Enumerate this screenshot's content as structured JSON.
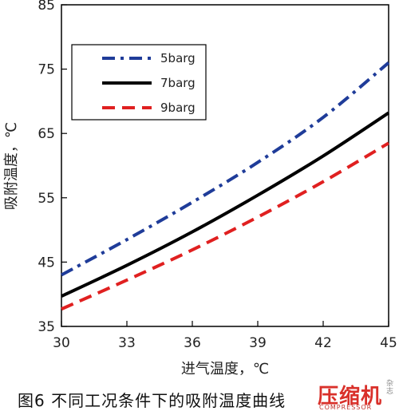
{
  "chart_data": {
    "type": "line",
    "xlabel": "进气温度，℃",
    "ylabel": "吸附温度，℃",
    "xlim": [
      30,
      45
    ],
    "ylim": [
      35,
      85
    ],
    "xticks": [
      "30",
      "33",
      "36",
      "39",
      "42",
      "45"
    ],
    "yticks": [
      "35",
      "45",
      "55",
      "65",
      "75",
      "85"
    ],
    "grid": false,
    "legend_position": "top-left",
    "series": [
      {
        "name": "5barg",
        "color": "#1f3c99",
        "dash": "dash-dot",
        "x": [
          30,
          33,
          36,
          39,
          42,
          45
        ],
        "y": [
          43,
          48.5,
          54.3,
          60.5,
          67.5,
          76
        ]
      },
      {
        "name": "7barg",
        "color": "#000000",
        "dash": "solid",
        "x": [
          30,
          33,
          36,
          39,
          42,
          45
        ],
        "y": [
          39.7,
          44.5,
          49.7,
          55.4,
          61.5,
          68.2
        ]
      },
      {
        "name": "9barg",
        "color": "#e02020",
        "dash": "dashed",
        "x": [
          30,
          33,
          36,
          39,
          42,
          45
        ],
        "y": [
          37.7,
          42.2,
          46.9,
          52,
          57.5,
          63.5
        ]
      }
    ]
  },
  "caption": "图6  不同工况条件下的吸附温度曲线",
  "watermark": {
    "main": "压缩机",
    "side": "杂志",
    "sub": "COMPRESSOR"
  }
}
